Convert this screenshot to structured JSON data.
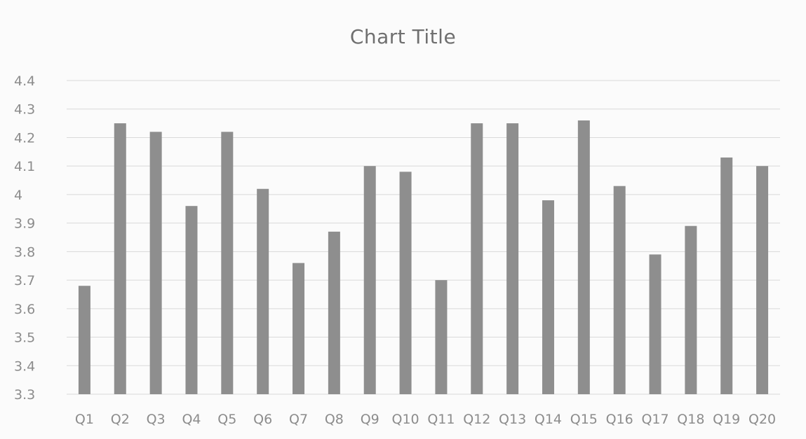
{
  "chart_data": {
    "type": "bar",
    "title": "Chart Title",
    "xlabel": "",
    "ylabel": "",
    "ylim": [
      3.3,
      4.4
    ],
    "yticks": [
      "3.3",
      "3.4",
      "3.5",
      "3.6",
      "3.7",
      "3.8",
      "3.9",
      "4",
      "4.1",
      "4.2",
      "4.3",
      "4.4"
    ],
    "grid": true,
    "legend": "none",
    "categories": [
      "Q1",
      "Q2",
      "Q3",
      "Q4",
      "Q5",
      "Q6",
      "Q7",
      "Q8",
      "Q9",
      "Q10",
      "Q11",
      "Q12",
      "Q13",
      "Q14",
      "Q15",
      "Q16",
      "Q17",
      "Q18",
      "Q19",
      "Q20"
    ],
    "values": [
      3.68,
      4.25,
      4.22,
      3.96,
      4.22,
      4.02,
      3.76,
      3.87,
      4.1,
      4.08,
      3.7,
      4.25,
      4.25,
      3.98,
      4.26,
      4.03,
      3.79,
      3.89,
      4.13,
      4.1
    ],
    "bar_color": "#8e8e8e",
    "grid_color": "#d9d9d9"
  }
}
